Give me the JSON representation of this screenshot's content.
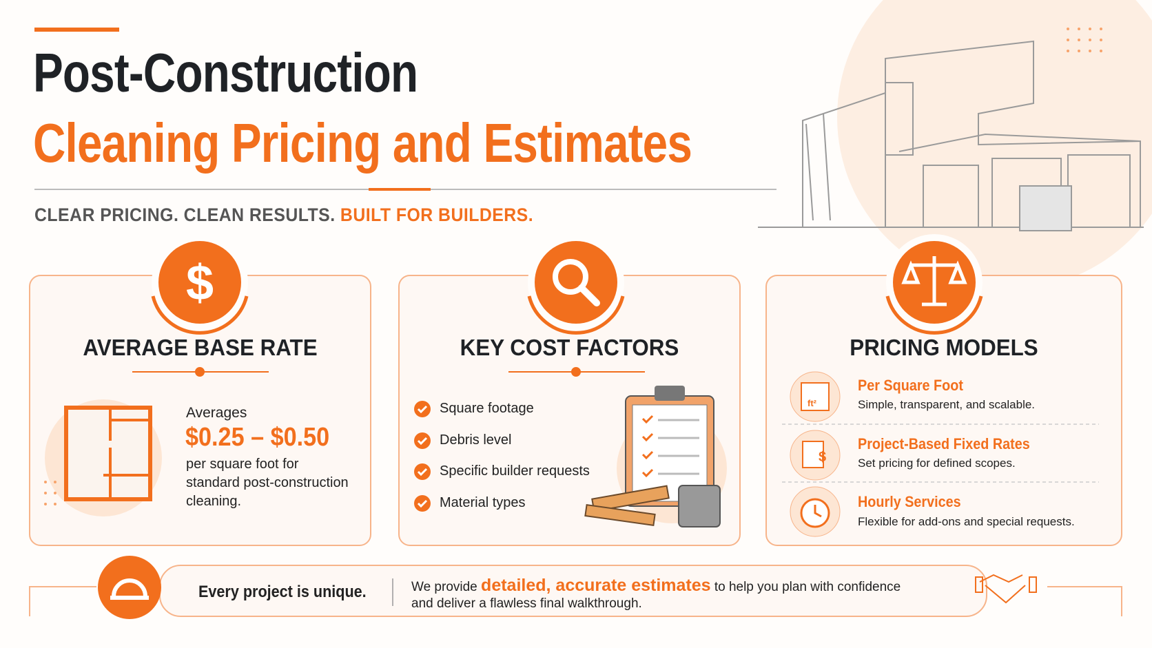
{
  "header": {
    "title_line1": "Post-Construction",
    "title_line2": "Cleaning Pricing and Estimates",
    "tagline_part1": "CLEAR PRICING. CLEAN RESULTS.",
    "tagline_part2": "BUILT FOR BUILDERS."
  },
  "cards": [
    {
      "title": "AVERAGE BASE RATE",
      "intro": "Averages",
      "price": "$0.25 – $0.50",
      "description": [
        "per square foot for",
        "standard post-construction",
        "cleaning."
      ]
    },
    {
      "title": "KEY COST FACTORS",
      "items": [
        "Square footage",
        "Debris level",
        "Specific builder requests",
        "Material types"
      ]
    },
    {
      "title": "PRICING MODELS",
      "icon_label": "ft²",
      "models": [
        {
          "name": "Per Square Foot",
          "desc": "Simple, transparent, and scalable."
        },
        {
          "name": "Project-Based Fixed Rates",
          "desc": "Set pricing for defined scopes."
        },
        {
          "name": "Hourly Services",
          "desc": "Flexible for add-ons and special requests."
        }
      ]
    }
  ],
  "footer": {
    "lead": "Every project is unique.",
    "text_before": "We provide",
    "highlight": "detailed, accurate estimates",
    "text_after": "to help you plan with confidence",
    "line2": "and deliver a flawless final walkthrough."
  }
}
